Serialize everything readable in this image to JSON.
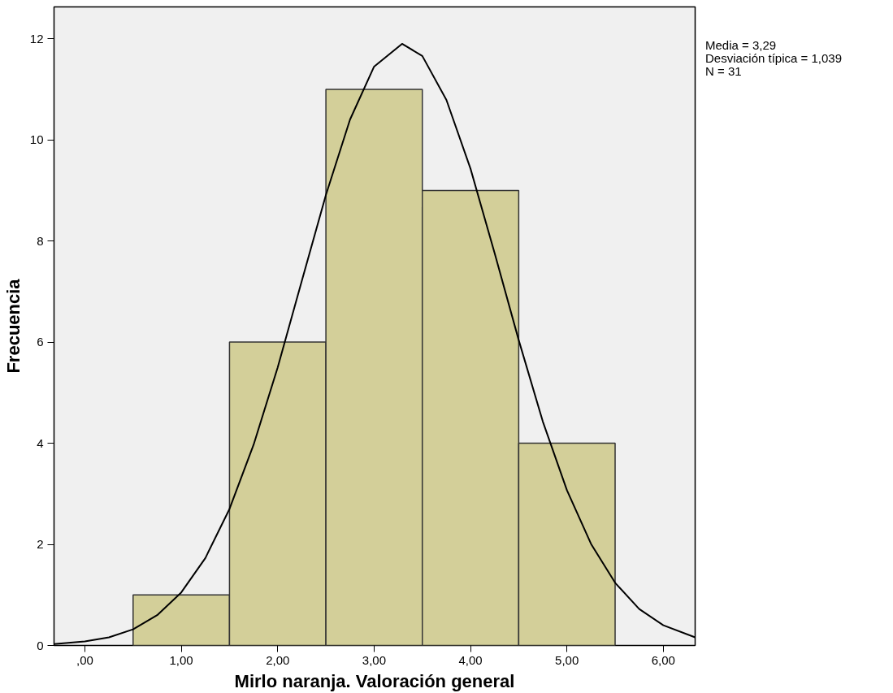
{
  "chart_data": {
    "type": "histogram",
    "xlabel": "Mirlo naranja. Valoración general",
    "ylabel": "Frecuencia",
    "bins": [
      0.5,
      1.5,
      2.5,
      3.5,
      4.5,
      5.5
    ],
    "values": [
      1,
      6,
      11,
      9,
      4
    ],
    "color": "#d3cf99",
    "series": [
      {
        "type": "line",
        "color": "#000000",
        "x": [
          -0.32,
          0,
          0.25,
          0.5,
          0.75,
          1,
          1.25,
          1.5,
          1.75,
          2,
          2.25,
          2.5,
          2.75,
          3,
          3.29,
          3.5,
          3.75,
          4,
          4.25,
          4.5,
          4.75,
          5,
          5.25,
          5.5,
          5.75,
          6,
          6.33
        ],
        "values": [
          0.03,
          0.08,
          0.16,
          0.32,
          0.6,
          1.05,
          1.73,
          2.7,
          3.97,
          5.5,
          7.21,
          8.91,
          10.4,
          11.45,
          11.9,
          11.66,
          10.79,
          9.43,
          7.76,
          6.04,
          4.43,
          3.07,
          2.01,
          1.24,
          0.72,
          0.4,
          0.16
        ]
      }
    ],
    "xlim": [
      -0.32,
      6.33
    ],
    "ylim": [
      0,
      12.63
    ],
    "xticks": [
      {
        "value": 0,
        "label": ",00"
      },
      {
        "value": 1,
        "label": "1,00"
      },
      {
        "value": 2,
        "label": "2,00"
      },
      {
        "value": 3,
        "label": "3,00"
      },
      {
        "value": 4,
        "label": "4,00"
      },
      {
        "value": 5,
        "label": "5,00"
      },
      {
        "value": 6,
        "label": "6,00"
      }
    ],
    "yticks": [
      0,
      2,
      4,
      6,
      8,
      10,
      12
    ],
    "grid": false,
    "annotations": [
      "Media = 3,29",
      "Desviación típica = 1,039",
      "N = 31"
    ]
  }
}
